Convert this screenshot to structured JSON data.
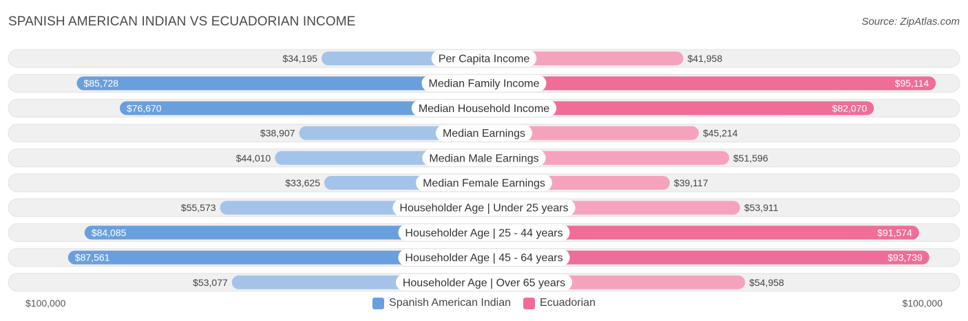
{
  "title": "SPANISH AMERICAN INDIAN VS ECUADORIAN INCOME",
  "source": "Source: ZipAtlas.com",
  "colors": {
    "left_light": "#a4c3e9",
    "left_dark": "#6a9fdd",
    "right_light": "#f5a3bd",
    "right_dark": "#ef6d96",
    "track": "#f0f0f0"
  },
  "axis": {
    "left_label": "$100,000",
    "right_label": "$100,000"
  },
  "legend": [
    {
      "name": "Spanish American Indian",
      "color": "#6a9fdd"
    },
    {
      "name": "Ecuadorian",
      "color": "#ef6d96"
    }
  ],
  "chart_data": {
    "type": "bar",
    "orientation": "diverging-horizontal",
    "xlim": [
      0,
      100000
    ],
    "categories": [
      "Per Capita Income",
      "Median Family Income",
      "Median Household Income",
      "Median Earnings",
      "Median Male Earnings",
      "Median Female Earnings",
      "Householder Age | Under 25 years",
      "Householder Age | 25 - 44 years",
      "Householder Age | 45 - 64 years",
      "Householder Age | Over 65 years"
    ],
    "series": [
      {
        "name": "Spanish American Indian",
        "values": [
          34195,
          85728,
          76670,
          38907,
          44010,
          33625,
          55573,
          84085,
          87561,
          53077
        ],
        "labels": [
          "$34,195",
          "$85,728",
          "$76,670",
          "$38,907",
          "$44,010",
          "$33,625",
          "$55,573",
          "$84,085",
          "$87,561",
          "$53,077"
        ]
      },
      {
        "name": "Ecuadorian",
        "values": [
          41958,
          95114,
          82070,
          45214,
          51596,
          39117,
          53911,
          91574,
          93739,
          54958
        ],
        "labels": [
          "$41,958",
          "$95,114",
          "$82,070",
          "$45,214",
          "$51,596",
          "$39,117",
          "$53,911",
          "$91,574",
          "$93,739",
          "$54,958"
        ]
      }
    ]
  }
}
